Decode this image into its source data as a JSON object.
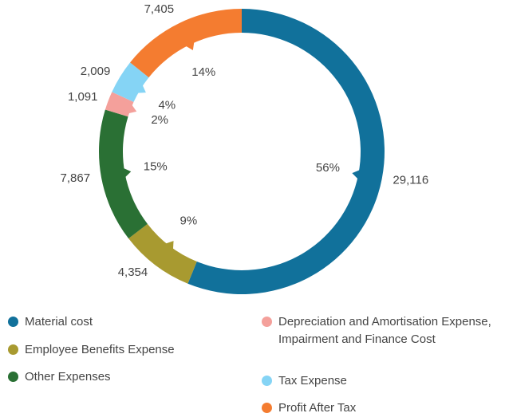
{
  "chart_data": {
    "type": "donut",
    "categories": [
      "Material cost",
      "Employee Benefits Expense",
      "Other Expenses",
      "Depreciation and Amortisation Expense, Impairment and Finance Cost",
      "Tax Expense",
      "Profit After Tax"
    ],
    "values": [
      29116,
      4354,
      7867,
      1091,
      2009,
      7405
    ],
    "value_labels": [
      "29,116",
      "4,354",
      "7,867",
      "1,091",
      "2,009",
      "7,405"
    ],
    "percent_labels": [
      "56%",
      "9%",
      "15%",
      "2%",
      "4%",
      "14%"
    ],
    "colors": [
      "#11719b",
      "#a89a30",
      "#2a7034",
      "#f4a09b",
      "#85d4f5",
      "#f47c30"
    ]
  }
}
